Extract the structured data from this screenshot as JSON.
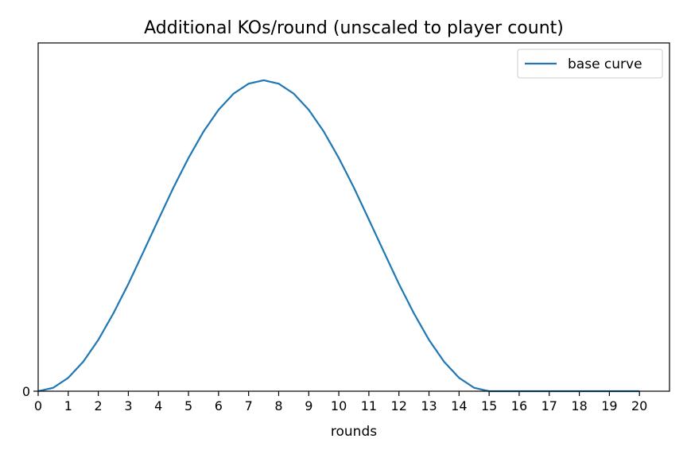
{
  "chart_data": {
    "type": "line",
    "title": "Additional KOs/round (unscaled to player count)",
    "xlabel": "rounds",
    "ylabel": "",
    "xlim": [
      0,
      21
    ],
    "ylim": [
      0,
      1.12
    ],
    "x_ticks": [
      "0",
      "1",
      "2",
      "3",
      "4",
      "5",
      "6",
      "7",
      "8",
      "9",
      "10",
      "11",
      "12",
      "13",
      "14",
      "15",
      "16",
      "17",
      "18",
      "19",
      "20"
    ],
    "y_ticks": [
      "0"
    ],
    "grid": false,
    "legend_position": "top-right",
    "series": [
      {
        "name": "base curve",
        "color": "#1f77b4",
        "x": [
          0,
          0.5,
          1,
          1.5,
          2,
          2.5,
          3,
          3.5,
          4,
          4.5,
          5,
          5.5,
          6,
          6.5,
          7,
          7.5,
          8,
          8.5,
          9,
          9.5,
          10,
          10.5,
          11,
          11.5,
          12,
          12.5,
          13,
          13.5,
          14,
          14.5,
          15,
          15.5,
          16,
          16.5,
          17,
          17.5,
          18,
          18.5,
          19,
          19.5,
          20
        ],
        "y": [
          0,
          0.011,
          0.043,
          0.095,
          0.165,
          0.25,
          0.345,
          0.448,
          0.552,
          0.655,
          0.75,
          0.835,
          0.905,
          0.957,
          0.989,
          1.0,
          0.989,
          0.957,
          0.905,
          0.835,
          0.75,
          0.655,
          0.552,
          0.448,
          0.345,
          0.25,
          0.165,
          0.095,
          0.043,
          0.011,
          0,
          0,
          0,
          0,
          0,
          0,
          0,
          0,
          0,
          0,
          0
        ]
      }
    ]
  }
}
